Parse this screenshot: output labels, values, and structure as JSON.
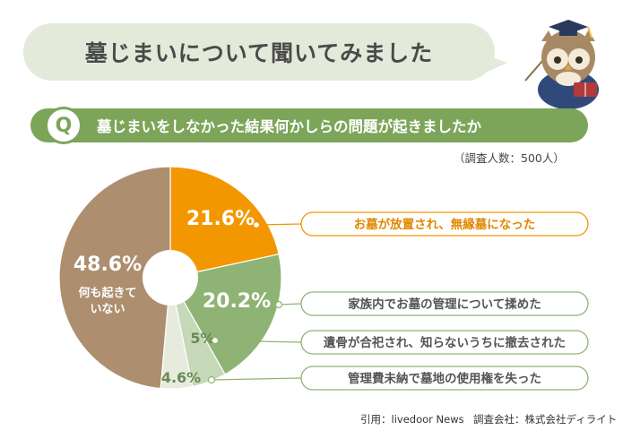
{
  "title": "墓じまいについて聞いてみました",
  "question": {
    "badge": "Q",
    "text": "墓じまいをしなかった結果何かしらの問題が起きましたか"
  },
  "note": "（調査人数：500人）",
  "footer": {
    "source": "引用：livedoor News",
    "company": "調査会社：株式会社ディライト"
  },
  "colors": {
    "title_bubble": "#e3ead9",
    "question_bar": "#7ca55a"
  },
  "mascot_icon": "owl-professor-icon",
  "chart_data": {
    "type": "pie",
    "style": "donut",
    "start": "12 o'clock, clockwise",
    "unit": "%",
    "slices": [
      {
        "value": 21.6,
        "label": "お墓が放置され、無縁墓になった",
        "value_text": "21.6%",
        "color": "#f39700",
        "label_color": "#ffffff",
        "label_border": "#f39700"
      },
      {
        "value": 20.2,
        "label": "家族内でお墓の管理について揉めた",
        "value_text": "20.2%",
        "color": "#8fb374",
        "label_color": "#ffffff",
        "label_border": "#8fb374"
      },
      {
        "value": 5,
        "label": "遺骨が合祀され、知らないうちに撤去された",
        "value_text": "5%",
        "color": "#c5d8b8",
        "label_color": "#6a8a55",
        "label_border": "#8fb374"
      },
      {
        "value": 4.6,
        "label": "管理費未納で墓地の使用権を失った",
        "value_text": "4.6%",
        "color": "#e6ebdd",
        "label_color": "#6a8a55",
        "label_border": "#8fb374"
      },
      {
        "value": 48.6,
        "label": "何も起きていない",
        "value_text": "48.6%",
        "color": "#ad8e6f",
        "label_color": "#ffffff",
        "label_border": ""
      }
    ]
  }
}
